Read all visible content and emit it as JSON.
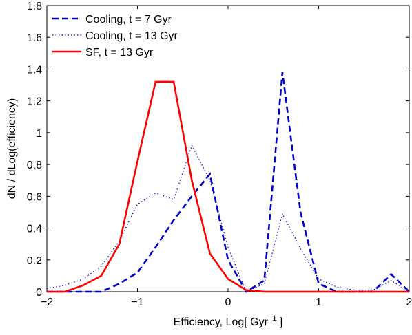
{
  "chart_data": {
    "type": "line",
    "xlabel": "Efficiency, Log[ Gyr",
    "xlabel_sup": "−1",
    "xlabel_end": " ]",
    "ylabel": "dN / dLog(efficiency)",
    "xlim": [
      -2,
      2
    ],
    "ylim": [
      0,
      1.8
    ],
    "xticks": [
      -2,
      -1,
      0,
      1,
      2
    ],
    "xtick_labels": [
      "−2",
      "−1",
      "0",
      "1",
      "2"
    ],
    "yticks": [
      0,
      0.2,
      0.4,
      0.6,
      0.8,
      1,
      1.2,
      1.4,
      1.6,
      1.8
    ],
    "ytick_labels": [
      "0",
      "0.2",
      "0.4",
      "0.6",
      "0.8",
      "1",
      "1.2",
      "1.4",
      "1.6",
      "1.8"
    ],
    "grid": false,
    "legend_position": "top-left",
    "series": [
      {
        "name": "Cooling, t = 7 Gyr",
        "style": "dashed",
        "color": "#0000cc",
        "x": [
          -2.0,
          -1.8,
          -1.6,
          -1.4,
          -1.2,
          -1.0,
          -0.8,
          -0.6,
          -0.4,
          -0.2,
          0.0,
          0.2,
          0.4,
          0.6,
          0.8,
          1.0,
          1.2,
          1.4,
          1.6,
          1.8,
          2.0
        ],
        "y": [
          0.0,
          0.0,
          0.0,
          0.0,
          0.05,
          0.12,
          0.28,
          0.45,
          0.6,
          0.74,
          0.2,
          0.0,
          0.07,
          1.38,
          0.5,
          0.05,
          0.0,
          0.0,
          0.0,
          0.11,
          0.0
        ]
      },
      {
        "name": "Cooling, t = 13 Gyr",
        "style": "dotted",
        "color": "#0000cc",
        "x": [
          -2.0,
          -1.8,
          -1.6,
          -1.4,
          -1.2,
          -1.0,
          -0.8,
          -0.6,
          -0.4,
          -0.2,
          0.0,
          0.2,
          0.4,
          0.6,
          0.8,
          1.0,
          1.2,
          1.4,
          1.6,
          1.8,
          2.0
        ],
        "y": [
          0.02,
          0.04,
          0.08,
          0.16,
          0.32,
          0.55,
          0.62,
          0.58,
          0.92,
          0.7,
          0.28,
          0.0,
          0.05,
          0.49,
          0.27,
          0.08,
          0.03,
          0.01,
          0.01,
          0.07,
          0.0
        ]
      },
      {
        "name": "SF, t = 13 Gyr",
        "style": "solid",
        "color": "#ff0000",
        "x": [
          -2.0,
          -1.8,
          -1.6,
          -1.4,
          -1.2,
          -1.0,
          -0.8,
          -0.6,
          -0.4,
          -0.2,
          0.0,
          0.2,
          0.4,
          0.6,
          0.8,
          1.0,
          1.2,
          1.4,
          1.6,
          1.8,
          2.0
        ],
        "y": [
          0.0,
          0.0,
          0.04,
          0.1,
          0.3,
          0.82,
          1.32,
          1.32,
          0.7,
          0.24,
          0.08,
          0.01,
          0.0,
          0.0,
          0.0,
          0.0,
          0.0,
          0.0,
          0.0,
          0.0,
          0.0
        ]
      }
    ]
  }
}
